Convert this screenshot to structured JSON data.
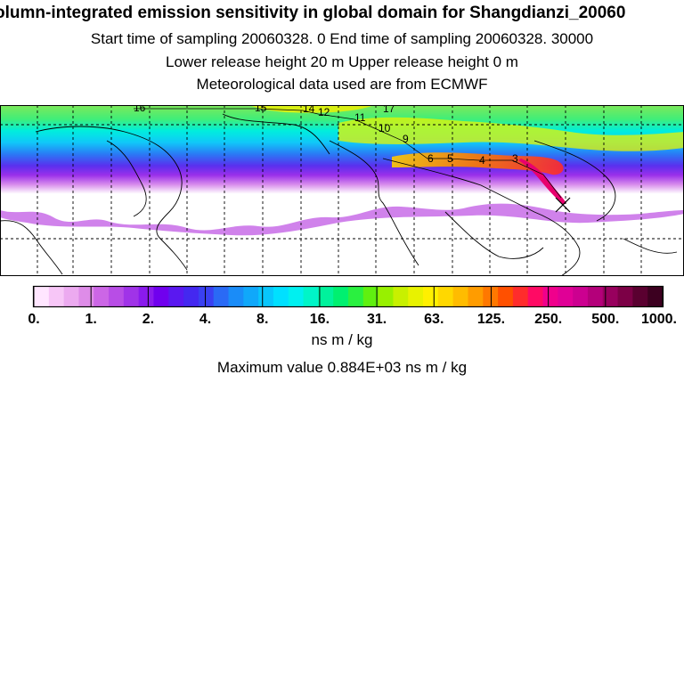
{
  "header": {
    "title": "olumn-integrated emission sensitivity in global domain for Shangdianzi_20060",
    "sampling": "Start time of sampling 20060328.     0     End time of sampling 20060328. 30000",
    "release": "Lower release height   20 m          Upper release height    0 m",
    "met": "Meteorological data used are from ECMWF"
  },
  "map": {
    "trajectory_labels": [
      "16",
      "15",
      "14",
      "12",
      "11",
      "10",
      "9",
      "6",
      "5",
      "4",
      "3",
      "17"
    ],
    "receptor": "Shangdianzi"
  },
  "colorbar": {
    "tick_labels": [
      "0.",
      "1.",
      "2.",
      "4.",
      "8.",
      "16.",
      "31.",
      "63.",
      "125.",
      "250.",
      "500.",
      "1000."
    ],
    "units": "ns m / kg",
    "colors": [
      "#ffe6ff",
      "#f7c6f7",
      "#ecaaf0",
      "#de8ce8",
      "#cc66e6",
      "#b84de6",
      "#a033e8",
      "#8a1aed",
      "#7000ee",
      "#5a18f0",
      "#4428f0",
      "#3a40f2",
      "#2a6af5",
      "#1a8cf8",
      "#10a8fa",
      "#08c6fc",
      "#00e0ff",
      "#00f0f0",
      "#00f5c8",
      "#00f29c",
      "#00f070",
      "#2af040",
      "#60f010",
      "#98f000",
      "#c8f000",
      "#e8f200",
      "#fff000",
      "#ffd800",
      "#ffbc00",
      "#ff9c00",
      "#ff7800",
      "#ff5000",
      "#ff2c2c",
      "#ff0a64",
      "#f0008c",
      "#e00096",
      "#cc0090",
      "#b4007a",
      "#98005e",
      "#7c0046",
      "#5a0030",
      "#3c0020"
    ]
  },
  "footer": {
    "max_value": "Maximum value  0.884E+03 ns m / kg"
  }
}
